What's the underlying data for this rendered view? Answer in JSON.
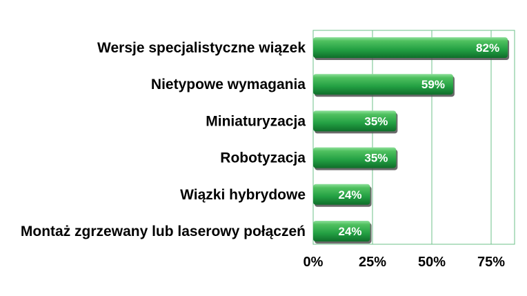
{
  "chart_data": {
    "type": "bar",
    "orientation": "horizontal",
    "title": "",
    "xlabel": "",
    "ylabel": "",
    "categories": [
      "Wersje specjalistyczne wiązek",
      "Nietypowe wymagania",
      "Miniaturyzacja",
      "Robotyzacja",
      "Wiązki hybrydowe",
      "Montaż zgrzewany lub laserowy połączeń"
    ],
    "values": [
      82,
      59,
      35,
      35,
      24,
      24
    ],
    "value_labels": [
      "82%",
      "59%",
      "35%",
      "35%",
      "24%",
      "24%"
    ],
    "x_ticks": [
      0,
      25,
      50,
      75
    ],
    "x_tick_labels": [
      "0%",
      "25%",
      "50%",
      "75%"
    ],
    "xlim": [
      0,
      85
    ],
    "grid": "vertical",
    "legend": "none"
  },
  "colors": {
    "bar_light": "#4fc05f",
    "bar_mid": "#23a043",
    "bar_dark": "#0f6e2a",
    "bar_top": "#8ee09a",
    "shadow": "#505050",
    "grid": "#6cc08a",
    "plot_border": "#6cc08a"
  }
}
